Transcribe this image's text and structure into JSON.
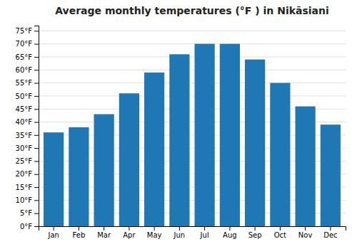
{
  "chart_data": {
    "type": "bar",
    "title": "Average monthly temperatures (°F ) in Nikāsiani",
    "categories": [
      "Jan",
      "Feb",
      "Mar",
      "Apr",
      "May",
      "Jun",
      "Jul",
      "Aug",
      "Sep",
      "Oct",
      "Nov",
      "Dec"
    ],
    "values": [
      36,
      38,
      43,
      51,
      59,
      66,
      70,
      70,
      64,
      55,
      46,
      39
    ],
    "ylim": [
      0,
      77
    ],
    "yticks": [
      {
        "value": 0,
        "label": "0°F"
      },
      {
        "value": 5,
        "label": "5°F"
      },
      {
        "value": 10,
        "label": "10°F"
      },
      {
        "value": 15,
        "label": "15°F"
      },
      {
        "value": 20,
        "label": "20°F"
      },
      {
        "value": 25,
        "label": "25°F"
      },
      {
        "value": 30,
        "label": "30°F"
      },
      {
        "value": 35,
        "label": "35°F"
      },
      {
        "value": 40,
        "label": "40°F"
      },
      {
        "value": 45,
        "label": "45°F"
      },
      {
        "value": 50,
        "label": "50°F"
      },
      {
        "value": 55,
        "label": "55°F"
      },
      {
        "value": 60,
        "label": "60°F"
      },
      {
        "value": 65,
        "label": "65°F"
      },
      {
        "value": 70,
        "label": "70°F"
      },
      {
        "value": 75,
        "label": "75°F"
      }
    ],
    "grid": true
  }
}
